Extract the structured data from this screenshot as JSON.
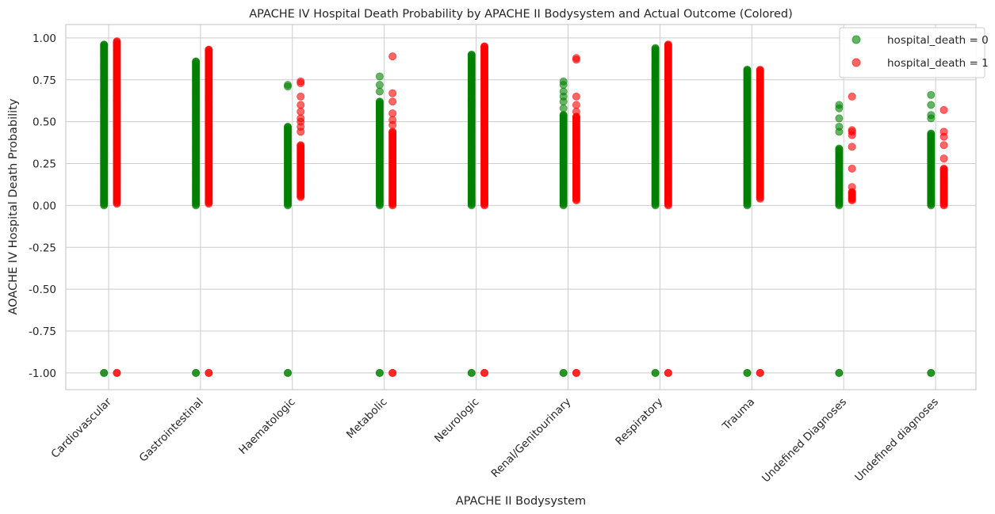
{
  "chart_data": {
    "type": "scatter",
    "title": "APACHE IV Hospital Death Probability by APACHE II Bodysystem and Actual Outcome (Colored)",
    "xlabel": "APACHE II Bodysystem",
    "ylabel": "AOACHE IV Hospital Death Probability",
    "categories": [
      "Cardiovascular",
      "Gastrointestinal",
      "Haematologic",
      "Metabolic",
      "Neurologic",
      "Renal/Genitourinary",
      "Respiratory",
      "Trauma",
      "Undefined Diagnoses",
      "Undefined diagnoses"
    ],
    "ylim": [
      -1.1,
      1.08
    ],
    "yticks": [
      "-1.00",
      "-0.75",
      "-0.50",
      "-0.25",
      "0.00",
      "0.25",
      "0.50",
      "0.75",
      "1.00"
    ],
    "grid": true,
    "legend_position": "top-right",
    "series": [
      {
        "name": "hospital_death = 0",
        "color": "#008000",
        "opacity": 0.6,
        "x_offset": -0.05,
        "ranges": [
          [
            0,
            0.96
          ],
          [
            0,
            0.86
          ],
          [
            0,
            0.47
          ],
          [
            0,
            0.62
          ],
          [
            0,
            0.9
          ],
          [
            0,
            0.54
          ],
          [
            0,
            0.94
          ],
          [
            0,
            0.81
          ],
          [
            0,
            0.34
          ],
          [
            0,
            0.43
          ]
        ],
        "extra_points": [
          [
            2,
            0.71
          ],
          [
            2,
            0.72
          ],
          [
            3,
            0.68
          ],
          [
            3,
            0.72
          ],
          [
            3,
            0.77
          ],
          [
            5,
            0.58
          ],
          [
            5,
            0.62
          ],
          [
            5,
            0.65
          ],
          [
            5,
            0.68
          ],
          [
            5,
            0.72
          ],
          [
            5,
            0.74
          ],
          [
            8,
            0.44
          ],
          [
            8,
            0.47
          ],
          [
            8,
            0.52
          ],
          [
            8,
            0.58
          ],
          [
            8,
            0.6
          ],
          [
            9,
            0.52
          ],
          [
            9,
            0.54
          ],
          [
            9,
            0.6
          ],
          [
            9,
            0.66
          ]
        ],
        "minus_one": [
          0,
          1,
          2,
          3,
          4,
          5,
          6,
          7,
          8,
          9
        ]
      },
      {
        "name": "hospital_death = 1",
        "color": "#ff0000",
        "opacity": 0.6,
        "x_offset": 0.09,
        "ranges": [
          [
            0.01,
            0.98
          ],
          [
            0.01,
            0.93
          ],
          [
            0.05,
            0.36
          ],
          [
            0,
            0.44
          ],
          [
            0,
            0.95
          ],
          [
            0.03,
            0.53
          ],
          [
            0,
            0.96
          ],
          [
            0.04,
            0.81
          ],
          [
            0.03,
            0.08
          ],
          [
            0,
            0.22
          ]
        ],
        "extra_points": [
          [
            2,
            0.44
          ],
          [
            2,
            0.47
          ],
          [
            2,
            0.5
          ],
          [
            2,
            0.52
          ],
          [
            2,
            0.56
          ],
          [
            2,
            0.6
          ],
          [
            2,
            0.65
          ],
          [
            2,
            0.73
          ],
          [
            2,
            0.74
          ],
          [
            3,
            0.48
          ],
          [
            3,
            0.51
          ],
          [
            3,
            0.55
          ],
          [
            3,
            0.62
          ],
          [
            3,
            0.67
          ],
          [
            3,
            0.89
          ],
          [
            5,
            0.56
          ],
          [
            5,
            0.6
          ],
          [
            5,
            0.65
          ],
          [
            5,
            0.87
          ],
          [
            5,
            0.88
          ],
          [
            8,
            0.11
          ],
          [
            8,
            0.22
          ],
          [
            8,
            0.35
          ],
          [
            8,
            0.42
          ],
          [
            8,
            0.44
          ],
          [
            8,
            0.45
          ],
          [
            8,
            0.65
          ],
          [
            9,
            0.28
          ],
          [
            9,
            0.36
          ],
          [
            9,
            0.41
          ],
          [
            9,
            0.44
          ],
          [
            9,
            0.57
          ]
        ],
        "minus_one": [
          0,
          1,
          3,
          4,
          5,
          6,
          7
        ]
      }
    ]
  }
}
